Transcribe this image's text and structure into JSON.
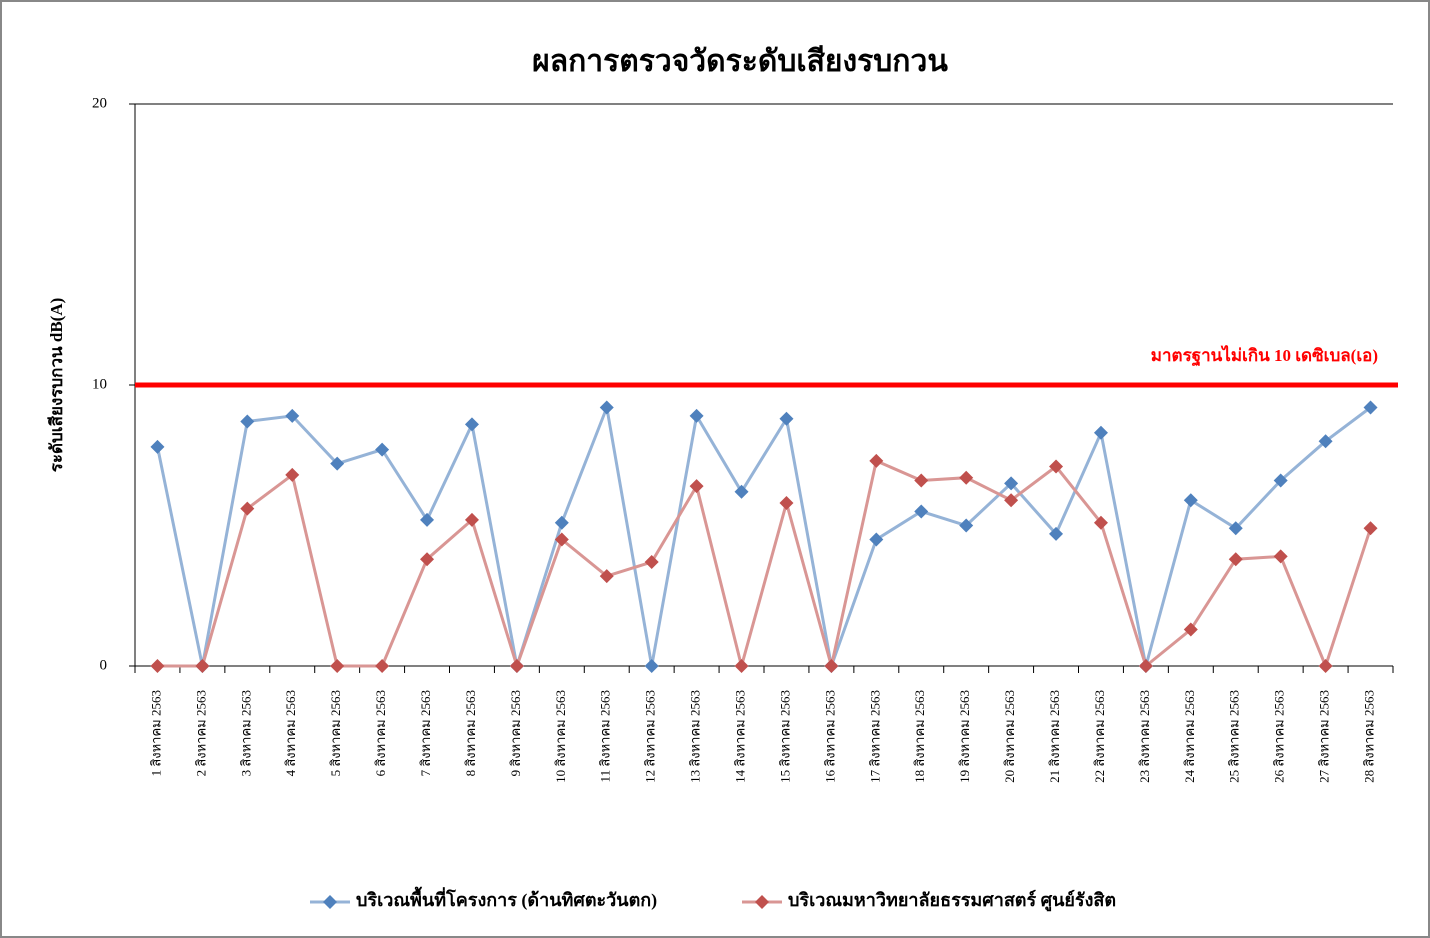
{
  "chart_data": {
    "type": "line",
    "title": "ผลการตรวจวัดระดับเสียงรบกวน",
    "y_label": "ระดับเสียงรบกวน dB(A)",
    "categories": [
      "1 สิงหาคม 2563",
      "2 สิงหาคม 2563",
      "3 สิงหาคม 2563",
      "4 สิงหาคม 2563",
      "5 สิงหาคม 2563",
      "6 สิงหาคม 2563",
      "7 สิงหาคม 2563",
      "8 สิงหาคม 2563",
      "9 สิงหาคม 2563",
      "10 สิงหาคม 2563",
      "11 สิงหาคม 2563",
      "12 สิงหาคม 2563",
      "13 สิงหาคม 2563",
      "14 สิงหาคม 2563",
      "15 สิงหาคม 2563",
      "16 สิงหาคม 2563",
      "17 สิงหาคม 2563",
      "18 สิงหาคม 2563",
      "19 สิงหาคม 2563",
      "20 สิงหาคม 2563",
      "21 สิงหาคม 2563",
      "22 สิงหาคม 2563",
      "23 สิงหาคม 2563",
      "24 สิงหาคม 2563",
      "25 สิงหาคม 2563",
      "26 สิงหาคม 2563",
      "27 สิงหาคม 2563",
      "28 สิงหาคม 2563"
    ],
    "series": [
      {
        "name": "บริเวณพื้นที่โครงการ (ด้านทิศตะวันตก)",
        "color": "#95b3d7",
        "marker_color": "#4f81bd",
        "values": [
          7.8,
          0,
          8.7,
          8.9,
          7.2,
          7.7,
          5.2,
          8.6,
          0,
          5.1,
          9.2,
          0,
          8.9,
          6.2,
          8.8,
          0,
          4.5,
          5.5,
          5.0,
          6.5,
          4.7,
          8.3,
          0,
          5.9,
          4.9,
          6.6,
          8.0,
          9.2
        ]
      },
      {
        "name": "บริเวณมหาวิทยาลัยธรรมศาสตร์ ศูนย์รังสิต",
        "color": "#d99694",
        "marker_color": "#c0504d",
        "values": [
          0,
          0,
          5.6,
          6.8,
          0,
          0,
          3.8,
          5.2,
          0,
          4.5,
          3.2,
          3.7,
          6.4,
          0,
          5.8,
          0,
          7.3,
          6.6,
          6.7,
          5.9,
          7.1,
          5.1,
          0,
          1.3,
          3.8,
          3.9,
          0,
          4.9
        ]
      }
    ],
    "reference_line": {
      "value": 10,
      "label": "มาตรฐานไม่เกิน 10 เดซิเบล(เอ)",
      "color": "#ff0000"
    },
    "ylim": [
      0,
      20
    ],
    "yticks": [
      0,
      10,
      20
    ],
    "legend": "bottom"
  }
}
